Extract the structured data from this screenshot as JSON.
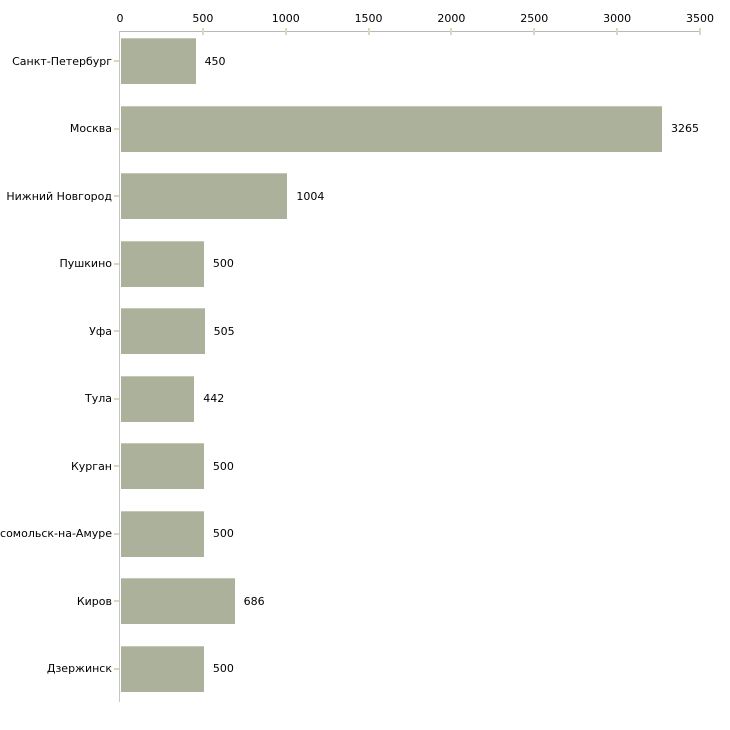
{
  "chart_data": {
    "type": "bar",
    "orientation": "horizontal",
    "title": "",
    "xlabel": "",
    "ylabel": "",
    "categories": [
      "Санкт-Петербург",
      "Москва",
      "Нижний Новгород",
      "Пушкино",
      "Уфа",
      "Тула",
      "Курган",
      "мсомольск-на-Амуре",
      "Киров",
      "Дзержинск"
    ],
    "values": [
      450,
      3265,
      1004,
      500,
      505,
      442,
      500,
      500,
      686,
      500
    ],
    "x_ticks": [
      0,
      500,
      1000,
      1500,
      2000,
      2500,
      3000,
      3500
    ],
    "xlim": [
      0,
      3500
    ],
    "grid": false,
    "legend": "none",
    "axis_position": "top",
    "colors": {
      "bar_fill": "#abb19a",
      "bar_edge": "#c4c9b5",
      "axis_line": "#b8b8b8",
      "axis_line_vertical": "#c6c6c6",
      "tick_mark": "#d8d9ba",
      "label_text": "#000000",
      "background": "#ffffff"
    }
  }
}
